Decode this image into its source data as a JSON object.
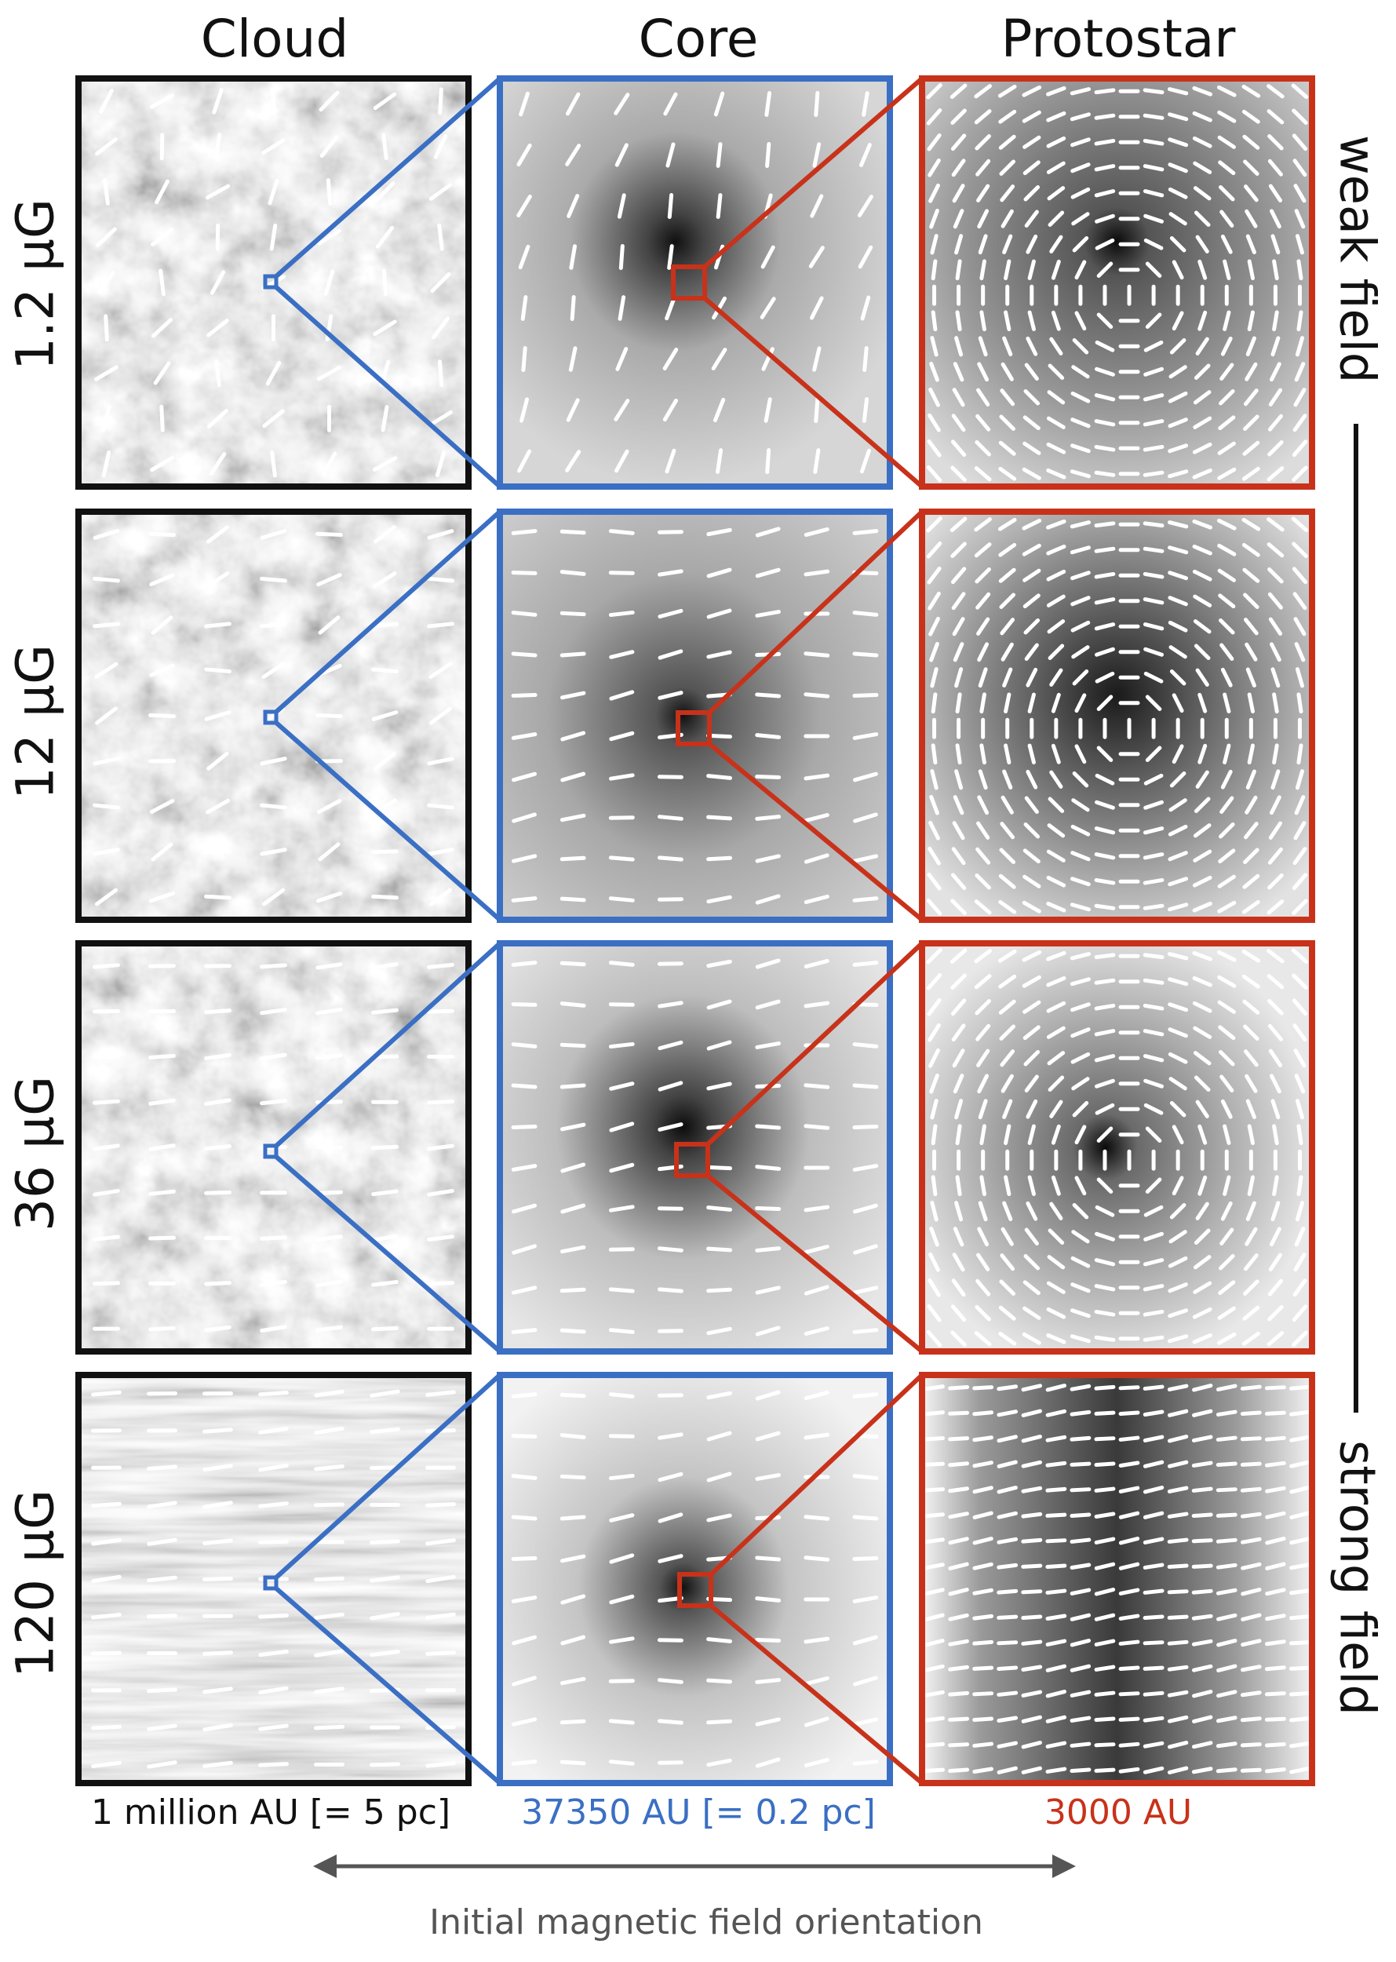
{
  "columns": [
    "Cloud",
    "Core",
    "Protostar"
  ],
  "rows": [
    "1.2 μG",
    "12 μG",
    "36 μG",
    "120 μG"
  ],
  "side": {
    "top": "weak field",
    "bottom": "strong field"
  },
  "scales": [
    "1 million AU [= 5 pc]",
    "37350 AU [= 0.2 pc]",
    "3000 AU"
  ],
  "caption": "Initial magnetic field orientation",
  "colors": {
    "cloud_frame": "#111111",
    "core_frame": "#3a6fc4",
    "protostar_frame": "#c8321a",
    "scale_cloud": "#111111",
    "scale_core": "#3a6fc4",
    "scale_protostar": "#c8321a"
  }
}
